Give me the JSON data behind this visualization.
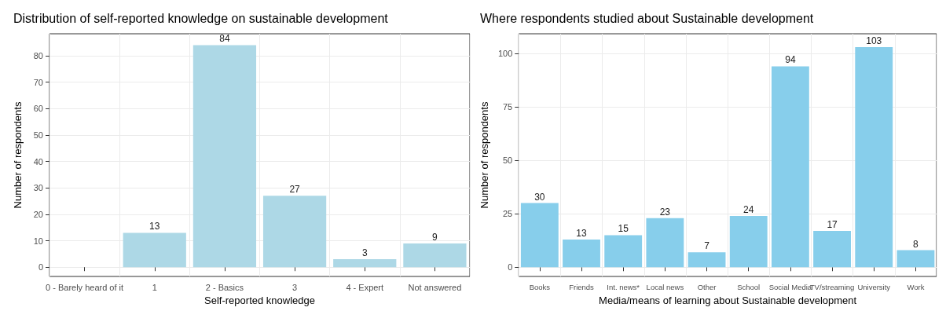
{
  "chart_data": [
    {
      "type": "bar",
      "title": "Distribution of self-reported knowledge on sustainable development",
      "xlabel": "Self-reported knowledge",
      "ylabel": "Number of respondents",
      "categories": [
        "0 - Barely heard of it",
        "1",
        "2 - Basics",
        "3",
        "4 - Expert",
        "Not answered"
      ],
      "values": [
        0,
        13,
        84,
        27,
        3,
        9
      ],
      "value_labels": [
        null,
        "13",
        "84",
        "27",
        "3",
        "9"
      ],
      "color": "#add8e6",
      "ylim": [
        -3.5,
        88.3
      ],
      "yticks": [
        0,
        10,
        20,
        30,
        40,
        50,
        60,
        70,
        80
      ],
      "grid": true
    },
    {
      "type": "bar",
      "title": "Where respondents studied about Sustainable development",
      "xlabel": "Media/means of learning about Sustainable development",
      "ylabel": "Number of respondents",
      "categories": [
        "Books",
        "Friends",
        "Int. news*",
        "Local news",
        "Other",
        "School",
        "Social Media",
        "TV/streaming",
        "University",
        "Work"
      ],
      "values": [
        30,
        13,
        15,
        23,
        7,
        24,
        94,
        17,
        103,
        8
      ],
      "data_labels": true,
      "color": "#87ceeb",
      "ylim": [
        -4.3,
        109.2
      ],
      "yticks": [
        0,
        25,
        50,
        75,
        100
      ],
      "grid": true
    }
  ]
}
